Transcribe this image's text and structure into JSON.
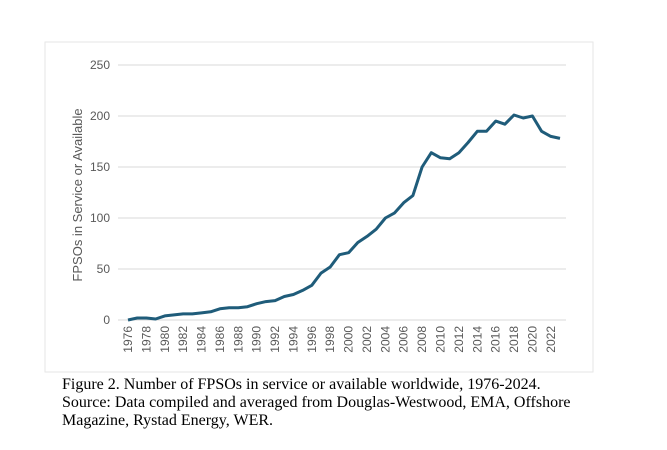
{
  "chart_data": {
    "type": "line",
    "title": "",
    "xlabel": "",
    "ylabel": "FPSOs in Service or Available",
    "ylim": [
      0,
      250
    ],
    "yticks": [
      0,
      50,
      100,
      150,
      200,
      250
    ],
    "xtick_labels": [
      "1976",
      "1978",
      "1980",
      "1982",
      "1984",
      "1986",
      "1988",
      "1990",
      "1992",
      "1994",
      "1996",
      "1998",
      "2000",
      "2002",
      "2004",
      "2006",
      "2008",
      "2010",
      "2012",
      "2014",
      "2016",
      "2018",
      "2020",
      "2022"
    ],
    "grid": true,
    "series": [
      {
        "name": "FPSOs",
        "color": "#1f5c7a",
        "x": [
          1976,
          1977,
          1978,
          1979,
          1980,
          1981,
          1982,
          1983,
          1984,
          1985,
          1986,
          1987,
          1988,
          1989,
          1990,
          1991,
          1992,
          1993,
          1994,
          1995,
          1996,
          1997,
          1998,
          1999,
          2000,
          2001,
          2002,
          2003,
          2004,
          2005,
          2006,
          2007,
          2008,
          2009,
          2010,
          2011,
          2012,
          2013,
          2014,
          2015,
          2016,
          2017,
          2018,
          2019,
          2020,
          2021,
          2022,
          2023
        ],
        "values": [
          0,
          2,
          2,
          1,
          4,
          5,
          6,
          6,
          7,
          8,
          11,
          12,
          12,
          13,
          16,
          18,
          19,
          23,
          25,
          29,
          34,
          46,
          52,
          64,
          66,
          76,
          82,
          89,
          100,
          105,
          115,
          122,
          150,
          164,
          159,
          158,
          164,
          174,
          185,
          185,
          195,
          192,
          201,
          198,
          200,
          185,
          180,
          178
        ]
      }
    ]
  },
  "caption": {
    "line1": "Figure 2. Number of FPSOs in service or available worldwide, 1976-2024.",
    "line2": "Source: Data compiled and averaged from Douglas-Westwood, EMA, Offshore",
    "line3": "Magazine, Rystad Energy, WER."
  }
}
